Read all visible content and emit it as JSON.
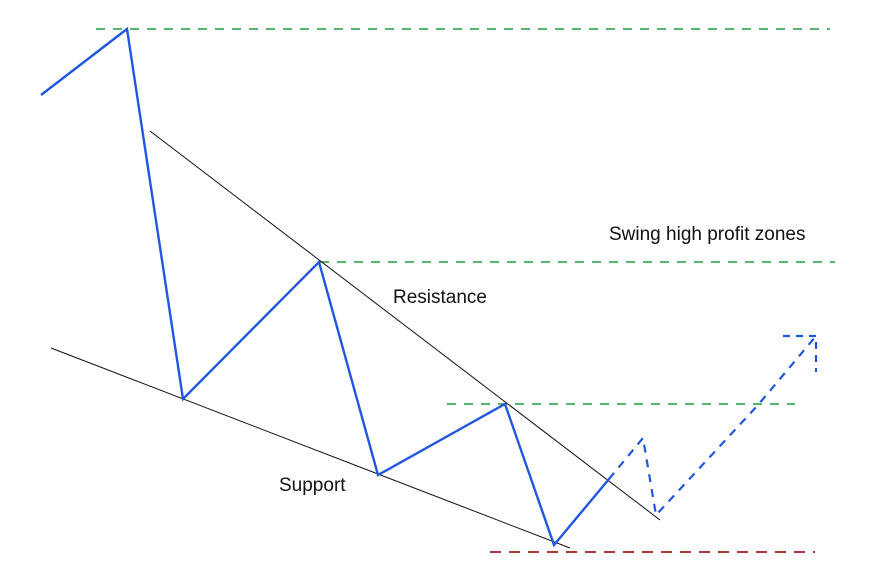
{
  "labels": {
    "swing_high_profit_zones": "Swing high profit zones",
    "resistance": "Resistance",
    "support": "Support"
  },
  "colors": {
    "price_line": "#2157e0",
    "trend_line": "#111111",
    "profit_zone": "#1e9e3e",
    "stop_zone": "#9e1a1a",
    "background": "#ffffff"
  }
}
